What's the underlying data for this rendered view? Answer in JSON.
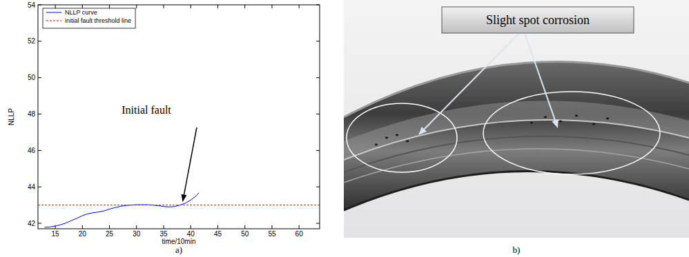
{
  "chart_data": {
    "type": "line",
    "caption": "a)",
    "x_label": "time/10min",
    "y_label": "NLLP",
    "x": [
      13,
      14,
      15,
      16,
      17,
      18,
      19,
      20,
      21,
      22,
      23,
      24,
      25,
      26,
      27,
      28,
      29,
      30,
      31,
      32,
      33,
      34,
      35,
      36,
      37,
      38,
      39,
      40,
      41,
      41.5
    ],
    "series": [
      {
        "name": "NLLP curve",
        "color": "#0000ff",
        "line_style": "solid",
        "values": [
          41.78,
          41.8,
          41.85,
          41.92,
          42.02,
          42.15,
          42.28,
          42.42,
          42.52,
          42.58,
          42.62,
          42.68,
          42.78,
          42.86,
          42.93,
          42.98,
          43.0,
          43.02,
          43.02,
          43.02,
          43.0,
          42.97,
          42.92,
          42.9,
          42.92,
          43.0,
          43.1,
          43.28,
          43.5,
          43.68
        ]
      },
      {
        "name": "initial fault threshold line",
        "color": "#ff0000",
        "line_style": "dashed",
        "x": [
          11.8,
          63.8
        ],
        "values": [
          43,
          43
        ]
      }
    ],
    "xlim": [
      11.8,
      63.8
    ],
    "xticks": [
      15,
      20,
      25,
      30,
      35,
      40,
      45,
      50,
      55,
      60
    ],
    "ylim": [
      41.7,
      54
    ],
    "yticks": [
      42,
      44,
      46,
      48,
      50,
      52,
      54
    ],
    "grid": false,
    "legend": "upper left",
    "annotation": {
      "text": "Initial fault",
      "x": 38.5,
      "y": 43.05
    }
  },
  "photo": {
    "label": "Slight spot corrosion",
    "caption": "b)"
  }
}
